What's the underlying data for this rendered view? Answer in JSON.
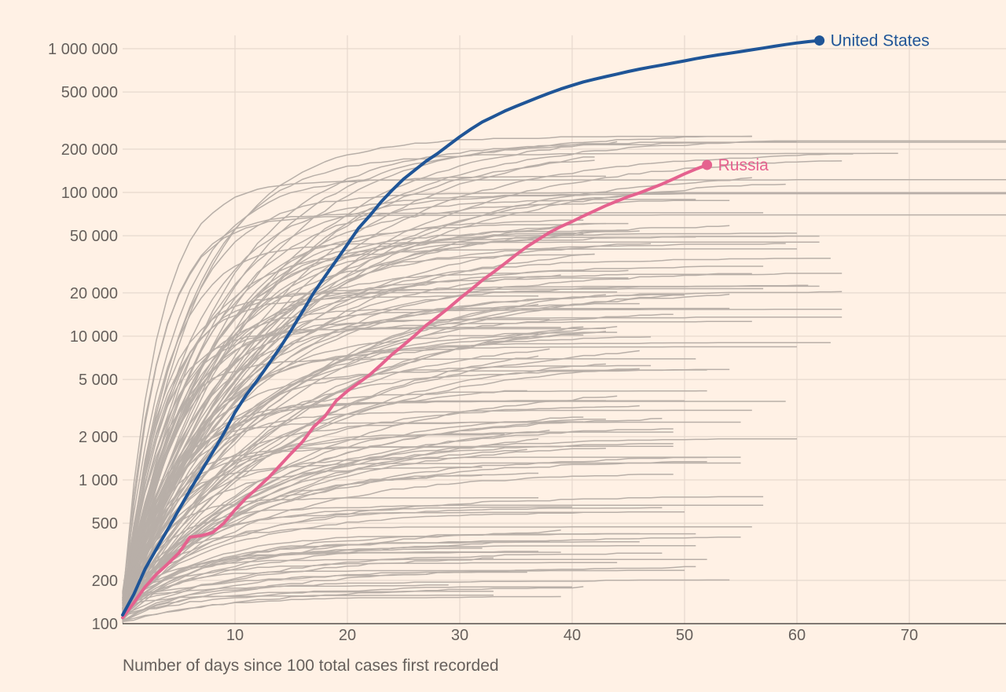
{
  "chart_data": {
    "type": "line",
    "title": "",
    "xlabel": "Number of days since 100 total cases first recorded",
    "ylabel": "",
    "yscale": "log",
    "xlim": [
      0,
      79
    ],
    "ylim": [
      100,
      1350000
    ],
    "grid": true,
    "x_ticks": [
      10,
      20,
      30,
      40,
      50,
      60,
      70
    ],
    "x_tick_labels": [
      "10",
      "20",
      "30",
      "40",
      "50",
      "60",
      "70"
    ],
    "y_ticks": [
      100,
      200,
      500,
      1000,
      2000,
      5000,
      10000,
      20000,
      50000,
      100000,
      200000,
      500000,
      1000000
    ],
    "y_tick_labels": [
      "100",
      "200",
      "500",
      "1 000",
      "2 000",
      "5 000",
      "10 000",
      "20 000",
      "50 000",
      "100 000",
      "200 000",
      "500 000",
      "1 000 000"
    ],
    "colors": {
      "background": "#FFF1E5",
      "grid": "#E6D9CE",
      "axis": "#33302E",
      "tick_text": "#66605C",
      "others": "#B8AFA8",
      "united_states": "#1F5597",
      "russia": "#E5628F"
    },
    "highlighted_series": [
      {
        "name": "United States",
        "color": "#1F5597",
        "points": [
          [
            0,
            115
          ],
          [
            1,
            160
          ],
          [
            2,
            240
          ],
          [
            3,
            330
          ],
          [
            4,
            450
          ],
          [
            5,
            620
          ],
          [
            6,
            850
          ],
          [
            7,
            1150
          ],
          [
            8,
            1550
          ],
          [
            9,
            2100
          ],
          [
            10,
            2950
          ],
          [
            11,
            3900
          ],
          [
            12,
            4950
          ],
          [
            13,
            6400
          ],
          [
            14,
            8300
          ],
          [
            15,
            11000
          ],
          [
            16,
            14800
          ],
          [
            17,
            20000
          ],
          [
            18,
            26000
          ],
          [
            19,
            33500
          ],
          [
            20,
            43500
          ],
          [
            21,
            56500
          ],
          [
            22,
            69000
          ],
          [
            23,
            86000
          ],
          [
            24,
            104000
          ],
          [
            25,
            124000
          ],
          [
            26,
            143000
          ],
          [
            27,
            165000
          ],
          [
            28,
            186000
          ],
          [
            29,
            213000
          ],
          [
            30,
            244000
          ],
          [
            31,
            276000
          ],
          [
            32,
            309000
          ],
          [
            33,
            337000
          ],
          [
            34,
            368000
          ],
          [
            35,
            397000
          ],
          [
            36,
            427000
          ],
          [
            37,
            459000
          ],
          [
            38,
            492000
          ],
          [
            39,
            525000
          ],
          [
            40,
            556000
          ],
          [
            41,
            587000
          ],
          [
            42,
            614000
          ],
          [
            43,
            640000
          ],
          [
            44,
            666000
          ],
          [
            45,
            694000
          ],
          [
            46,
            721000
          ],
          [
            47,
            746000
          ],
          [
            48,
            770000
          ],
          [
            49,
            796000
          ],
          [
            50,
            823000
          ],
          [
            51,
            852000
          ],
          [
            52,
            880000
          ],
          [
            53,
            905000
          ],
          [
            54,
            930000
          ],
          [
            55,
            956000
          ],
          [
            56,
            982000
          ],
          [
            57,
            1010000
          ],
          [
            58,
            1040000
          ],
          [
            59,
            1069000
          ],
          [
            60,
            1096000
          ],
          [
            61,
            1120000
          ],
          [
            62,
            1140000
          ]
        ]
      },
      {
        "name": "Russia",
        "color": "#E5628F",
        "points": [
          [
            0,
            110
          ],
          [
            1,
            140
          ],
          [
            2,
            180
          ],
          [
            3,
            220
          ],
          [
            4,
            260
          ],
          [
            5,
            310
          ],
          [
            6,
            400
          ],
          [
            7,
            410
          ],
          [
            8,
            430
          ],
          [
            9,
            500
          ],
          [
            10,
            620
          ],
          [
            11,
            750
          ],
          [
            12,
            880
          ],
          [
            13,
            1040
          ],
          [
            14,
            1260
          ],
          [
            15,
            1530
          ],
          [
            16,
            1840
          ],
          [
            17,
            2340
          ],
          [
            18,
            2770
          ],
          [
            19,
            3550
          ],
          [
            20,
            4150
          ],
          [
            21,
            4730
          ],
          [
            22,
            5400
          ],
          [
            23,
            6340
          ],
          [
            24,
            7500
          ],
          [
            25,
            8670
          ],
          [
            26,
            10100
          ],
          [
            27,
            11900
          ],
          [
            28,
            13600
          ],
          [
            29,
            15700
          ],
          [
            30,
            18300
          ],
          [
            31,
            21100
          ],
          [
            32,
            24500
          ],
          [
            33,
            27900
          ],
          [
            34,
            32000
          ],
          [
            35,
            36800
          ],
          [
            36,
            42100
          ],
          [
            37,
            47100
          ],
          [
            38,
            52800
          ],
          [
            39,
            57900
          ],
          [
            40,
            62800
          ],
          [
            41,
            68600
          ],
          [
            42,
            74500
          ],
          [
            43,
            80900
          ],
          [
            44,
            87100
          ],
          [
            45,
            93500
          ],
          [
            46,
            99400
          ],
          [
            47,
            106500
          ],
          [
            48,
            114400
          ],
          [
            49,
            124000
          ],
          [
            50,
            134700
          ],
          [
            51,
            145300
          ],
          [
            52,
            155400
          ]
        ]
      }
    ],
    "background_series_count": 150
  }
}
